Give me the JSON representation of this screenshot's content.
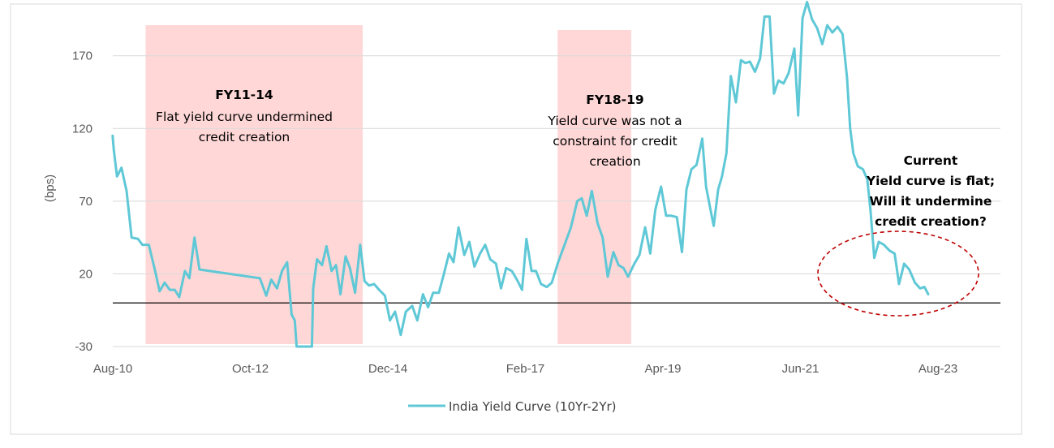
{
  "chart_data": {
    "type": "line",
    "title": "",
    "xlabel": "",
    "ylabel": "(bps)",
    "ylim": [
      -30,
      200
    ],
    "yticks": [
      -30,
      20,
      70,
      120,
      170
    ],
    "x_tick_labels": [
      {
        "label": "Aug-10",
        "t": 2010.583
      },
      {
        "label": "Oct-12",
        "t": 2012.75
      },
      {
        "label": "Dec-14",
        "t": 2014.917
      },
      {
        "label": "Feb-17",
        "t": 2017.083
      },
      {
        "label": "Apr-19",
        "t": 2019.25
      },
      {
        "label": "Jun-21",
        "t": 2021.417
      },
      {
        "label": "Aug-23",
        "t": 2023.583
      }
    ],
    "xlim": [
      2010.583,
      2023.583
    ],
    "reference_line": 0,
    "series": [
      {
        "name": "India Yield Curve (10Yr-2Yr)",
        "color": "#5FC8D6",
        "points": [
          [
            2010.58,
            115
          ],
          [
            2010.6,
            105
          ],
          [
            2010.65,
            87
          ],
          [
            2010.72,
            93
          ],
          [
            2010.8,
            77
          ],
          [
            2010.88,
            45
          ],
          [
            2010.98,
            44
          ],
          [
            2011.05,
            40
          ],
          [
            2011.15,
            40
          ],
          [
            2011.25,
            22
          ],
          [
            2011.32,
            8
          ],
          [
            2011.4,
            14
          ],
          [
            2011.48,
            9
          ],
          [
            2011.56,
            9
          ],
          [
            2011.63,
            4
          ],
          [
            2011.72,
            22
          ],
          [
            2011.79,
            17
          ],
          [
            2011.87,
            45
          ],
          [
            2011.95,
            23
          ],
          [
            2012.9,
            17
          ],
          [
            2013.0,
            5
          ],
          [
            2013.08,
            16
          ],
          [
            2013.17,
            10
          ],
          [
            2013.25,
            22
          ],
          [
            2013.33,
            28
          ],
          [
            2013.4,
            -8
          ],
          [
            2013.45,
            -12
          ],
          [
            2013.48,
            -30
          ],
          [
            2013.55,
            -30
          ],
          [
            2013.65,
            -30
          ],
          [
            2013.72,
            -30
          ],
          [
            2013.74,
            10
          ],
          [
            2013.8,
            30
          ],
          [
            2013.88,
            26
          ],
          [
            2013.95,
            39
          ],
          [
            2014.03,
            22
          ],
          [
            2014.1,
            26
          ],
          [
            2014.17,
            6
          ],
          [
            2014.25,
            32
          ],
          [
            2014.32,
            24
          ],
          [
            2014.4,
            7
          ],
          [
            2014.48,
            40
          ],
          [
            2014.55,
            15
          ],
          [
            2014.62,
            12
          ],
          [
            2014.7,
            13
          ],
          [
            2014.78,
            9
          ],
          [
            2014.87,
            5
          ],
          [
            2014.95,
            -12
          ],
          [
            2015.03,
            -6
          ],
          [
            2015.12,
            -22
          ],
          [
            2015.2,
            -6
          ],
          [
            2015.3,
            -2
          ],
          [
            2015.38,
            -12
          ],
          [
            2015.47,
            6
          ],
          [
            2015.55,
            -3
          ],
          [
            2015.63,
            7
          ],
          [
            2015.72,
            7
          ],
          [
            2015.8,
            20
          ],
          [
            2015.88,
            34
          ],
          [
            2015.95,
            28
          ],
          [
            2016.03,
            52
          ],
          [
            2016.12,
            33
          ],
          [
            2016.2,
            42
          ],
          [
            2016.28,
            25
          ],
          [
            2016.37,
            34
          ],
          [
            2016.45,
            40
          ],
          [
            2016.53,
            30
          ],
          [
            2016.62,
            27
          ],
          [
            2016.7,
            10
          ],
          [
            2016.78,
            24
          ],
          [
            2016.87,
            22
          ],
          [
            2016.95,
            16
          ],
          [
            2017.03,
            9
          ],
          [
            2017.1,
            44
          ],
          [
            2017.18,
            22
          ],
          [
            2017.25,
            22
          ],
          [
            2017.33,
            13
          ],
          [
            2017.42,
            11
          ],
          [
            2017.5,
            14
          ],
          [
            2017.6,
            28
          ],
          [
            2017.7,
            40
          ],
          [
            2017.8,
            52
          ],
          [
            2017.9,
            70
          ],
          [
            2017.97,
            72
          ],
          [
            2018.05,
            60
          ],
          [
            2018.13,
            77
          ],
          [
            2018.22,
            55
          ],
          [
            2018.3,
            45
          ],
          [
            2018.38,
            18
          ],
          [
            2018.47,
            35
          ],
          [
            2018.55,
            26
          ],
          [
            2018.63,
            24
          ],
          [
            2018.7,
            18
          ],
          [
            2018.8,
            27
          ],
          [
            2018.88,
            33
          ],
          [
            2018.97,
            52
          ],
          [
            2019.05,
            34
          ],
          [
            2019.13,
            64
          ],
          [
            2019.22,
            80
          ],
          [
            2019.3,
            60
          ],
          [
            2019.38,
            60
          ],
          [
            2019.47,
            59
          ],
          [
            2019.55,
            35
          ],
          [
            2019.62,
            78
          ],
          [
            2019.7,
            92
          ],
          [
            2019.78,
            95
          ],
          [
            2019.87,
            113
          ],
          [
            2019.93,
            80
          ],
          [
            2020.0,
            64
          ],
          [
            2020.05,
            53
          ],
          [
            2020.12,
            78
          ],
          [
            2020.18,
            87
          ],
          [
            2020.25,
            103
          ],
          [
            2020.32,
            156
          ],
          [
            2020.4,
            138
          ],
          [
            2020.48,
            167
          ],
          [
            2020.55,
            165
          ],
          [
            2020.62,
            166
          ],
          [
            2020.7,
            159
          ],
          [
            2020.78,
            168
          ],
          [
            2020.85,
            197
          ],
          [
            2020.93,
            197
          ],
          [
            2021.0,
            144
          ],
          [
            2021.07,
            153
          ],
          [
            2021.15,
            151
          ],
          [
            2021.23,
            158
          ],
          [
            2021.32,
            175
          ],
          [
            2021.38,
            129
          ],
          [
            2021.45,
            196
          ],
          [
            2021.52,
            207
          ],
          [
            2021.6,
            195
          ],
          [
            2021.68,
            189
          ],
          [
            2021.76,
            178
          ],
          [
            2021.84,
            191
          ],
          [
            2021.92,
            186
          ],
          [
            2022.0,
            190
          ],
          [
            2022.08,
            185
          ],
          [
            2022.15,
            155
          ],
          [
            2022.2,
            120
          ],
          [
            2022.25,
            103
          ],
          [
            2022.32,
            94
          ],
          [
            2022.4,
            92
          ],
          [
            2022.47,
            85
          ],
          [
            2022.52,
            64
          ],
          [
            2022.58,
            31
          ],
          [
            2022.65,
            42
          ],
          [
            2022.73,
            40
          ],
          [
            2022.82,
            36
          ],
          [
            2022.9,
            34
          ],
          [
            2022.97,
            13
          ],
          [
            2023.05,
            27
          ],
          [
            2023.13,
            23
          ],
          [
            2023.22,
            14
          ],
          [
            2023.3,
            10
          ],
          [
            2023.37,
            11
          ],
          [
            2023.43,
            6
          ]
        ]
      }
    ],
    "shaded_regions": [
      {
        "label_title": "FY11-14",
        "label_lines": [
          "Flat yield curve undermined",
          "credit creation"
        ],
        "t_start": 2011.1,
        "t_end": 2014.52,
        "color": "#FFD7D7"
      },
      {
        "label_title": "FY18-19",
        "label_lines": [
          "Yield curve was not a",
          "constraint for credit",
          "creation"
        ],
        "t_start": 2017.59,
        "t_end": 2018.75,
        "color": "#FFD7D7"
      }
    ],
    "annotation": {
      "lines": [
        "Current",
        "Yield curve is flat;",
        "Will it undermine",
        "credit creation?"
      ],
      "ellipse_color": "#C00000"
    },
    "legend_position": "bottom-center"
  }
}
